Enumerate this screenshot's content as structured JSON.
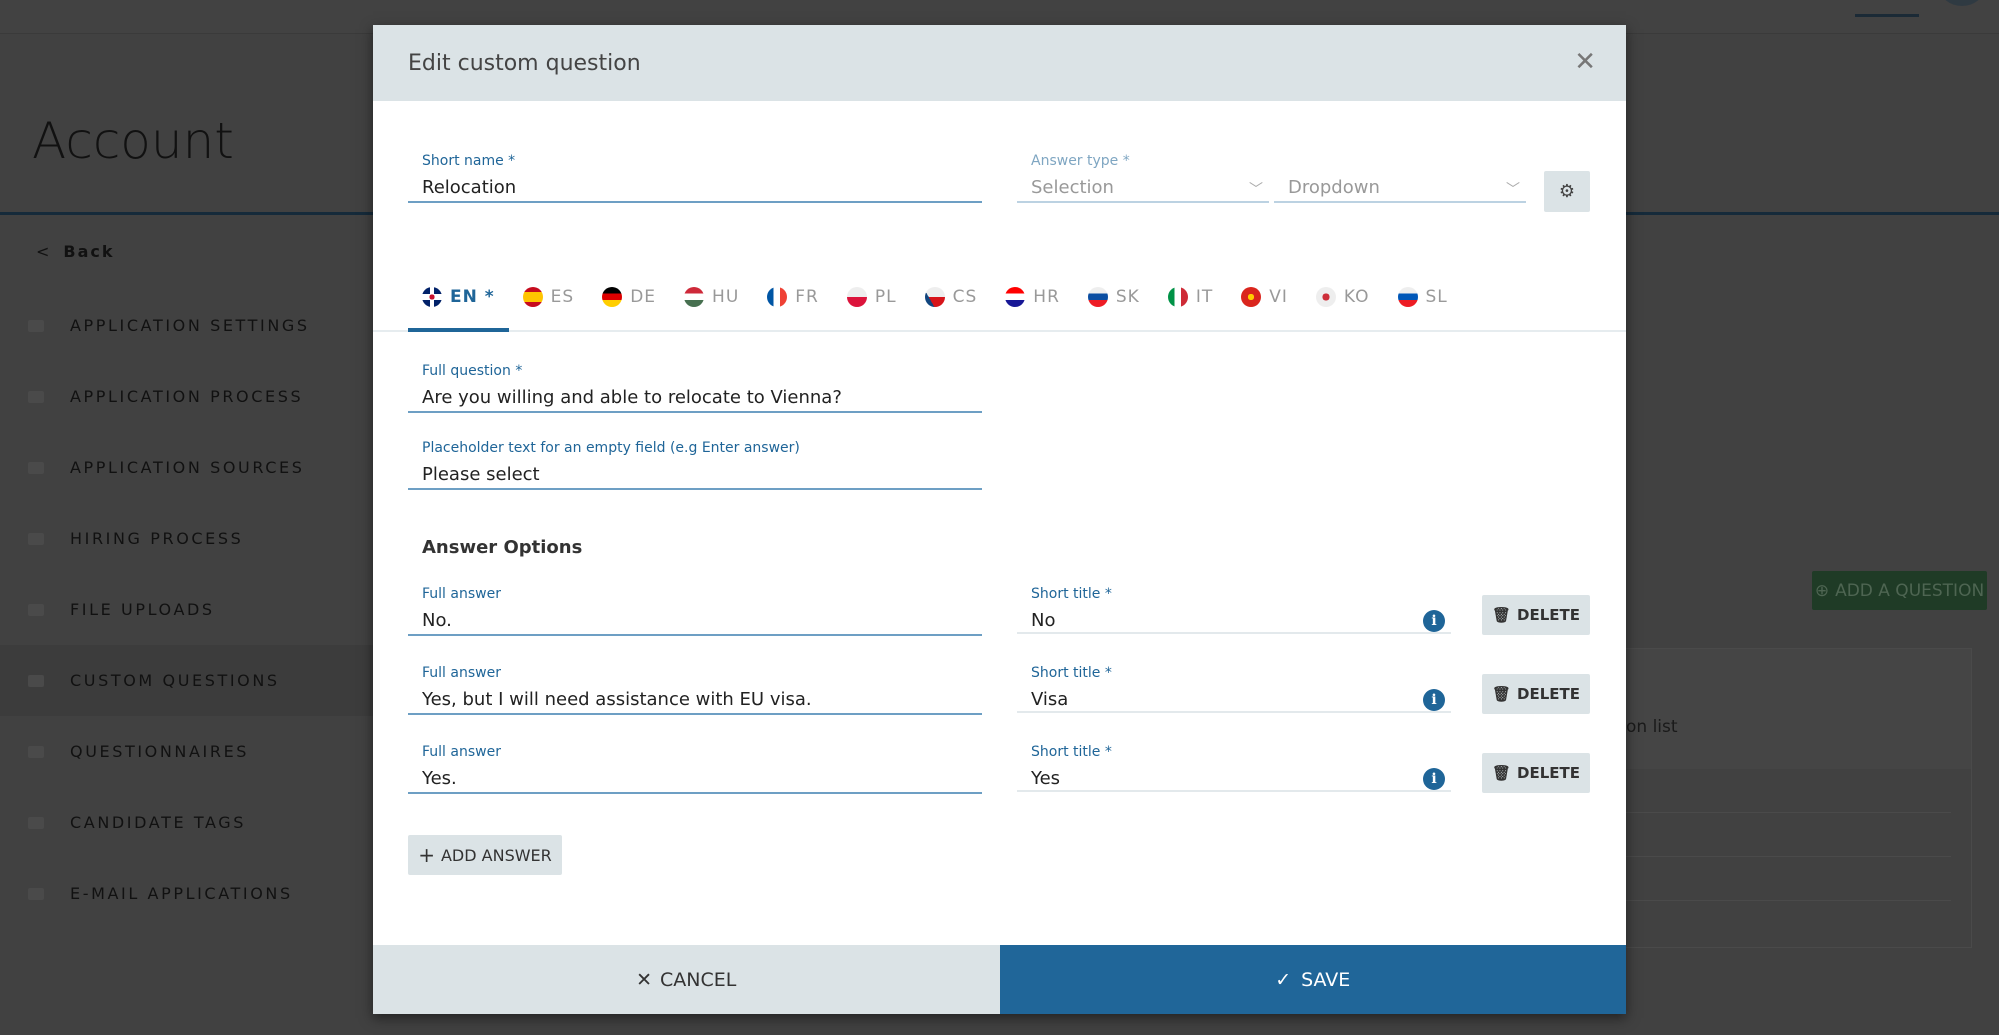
{
  "background": {
    "page_title": "Account",
    "back_label": "Back",
    "sidebar": [
      {
        "label": "APPLICATION SETTINGS",
        "icon": "gears-icon"
      },
      {
        "label": "APPLICATION PROCESS",
        "icon": "process-icon"
      },
      {
        "label": "APPLICATION SOURCES",
        "icon": "sources-icon"
      },
      {
        "label": "HIRING PROCESS",
        "icon": "sort-icon"
      },
      {
        "label": "FILE UPLOADS",
        "icon": "upload-icon"
      },
      {
        "label": "CUSTOM QUESTIONS",
        "icon": "checklist-icon",
        "active": true
      },
      {
        "label": "QUESTIONNAIRES",
        "icon": "card-icon"
      },
      {
        "label": "CANDIDATE TAGS",
        "icon": "tag-icon"
      },
      {
        "label": "E-MAIL APPLICATIONS",
        "icon": "envelope-icon"
      }
    ],
    "add_question_label": "ADD A QUESTION",
    "panel_text": "on list"
  },
  "modal": {
    "title": "Edit custom question",
    "short_name": {
      "label": "Short name *",
      "value": "Relocation"
    },
    "answer_type": {
      "label": "Answer type *",
      "type_value": "Selection",
      "display_value": "Dropdown"
    },
    "languages": [
      {
        "code": "EN *",
        "active": true
      },
      {
        "code": "ES"
      },
      {
        "code": "DE"
      },
      {
        "code": "HU"
      },
      {
        "code": "FR"
      },
      {
        "code": "PL"
      },
      {
        "code": "CS"
      },
      {
        "code": "HR"
      },
      {
        "code": "SK"
      },
      {
        "code": "IT"
      },
      {
        "code": "VI"
      },
      {
        "code": "KO"
      },
      {
        "code": "SL"
      }
    ],
    "full_question": {
      "label": "Full question *",
      "value": "Are you willing and able to relocate to Vienna?"
    },
    "placeholder": {
      "label": "Placeholder text for an empty field (e.g Enter answer)",
      "value": "Please select"
    },
    "answer_options_title": "Answer Options",
    "answers": [
      {
        "full_label": "Full answer",
        "full": "No.",
        "short_label": "Short title *",
        "short": "No",
        "delete": "DELETE"
      },
      {
        "full_label": "Full answer",
        "full": "Yes, but I will need assistance with EU visa.",
        "short_label": "Short title *",
        "short": "Visa",
        "delete": "DELETE"
      },
      {
        "full_label": "Full answer",
        "full": "Yes.",
        "short_label": "Short title *",
        "short": "Yes",
        "delete": "DELETE"
      }
    ],
    "add_answer_label": "ADD ANSWER",
    "cancel_label": "CANCEL",
    "save_label": "SAVE"
  },
  "colors": {
    "accent": "#206699",
    "header_bg": "#dbe3e6",
    "overlay": "#414141"
  }
}
